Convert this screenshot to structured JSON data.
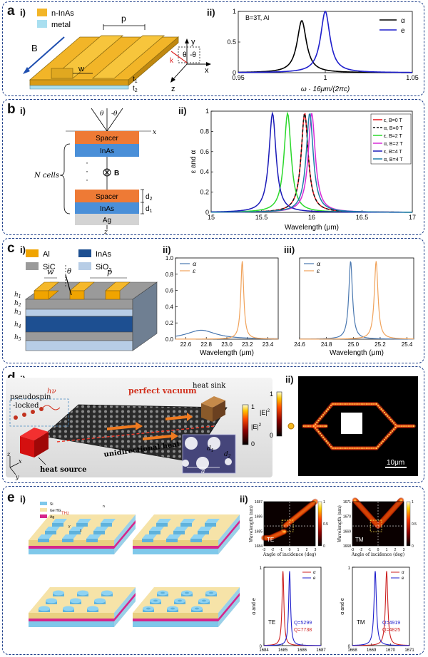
{
  "panels": {
    "a": {
      "label": "a",
      "sub_i": "i)",
      "sub_ii": "ii)",
      "legend": {
        "material": "n-InAs",
        "metal": "metal"
      },
      "labels": {
        "p": "p",
        "w": "w",
        "t1": "t",
        "t1sub": "1",
        "t2": "t",
        "t2sub": "2",
        "B": "B",
        "x": "x",
        "y": "y",
        "z": "z",
        "theta1": "θ",
        "theta2": "-θ",
        "k": "k"
      },
      "colors": {
        "material": "#f2b528",
        "metal": "#a9dff0"
      }
    },
    "b": {
      "label": "b",
      "sub_i": "i)",
      "sub_ii": "ii)",
      "layers": {
        "spacer": "Spacer",
        "inas": "InAs",
        "ag": "Ag"
      },
      "labels": {
        "ncells": "N cells",
        "B": "B",
        "d1": "d",
        "d1sub": "1",
        "d2": "d",
        "d2sub": "2",
        "theta": "θ",
        "mtheta": "-θ",
        "x": "x",
        "z": "z",
        "dots": "·"
      }
    },
    "c": {
      "label": "c",
      "sub_i": "i)",
      "sub_ii": "ii)",
      "sub_iii": "iii)",
      "legend": [
        {
          "name": "Al",
          "color": "#f0a400"
        },
        {
          "name": "InAs",
          "color": "#1d4f91"
        },
        {
          "name": "SiC",
          "color": "#9a9a9a"
        },
        {
          "name": "SiO",
          "sub": "2",
          "color": "#b7cde6"
        }
      ],
      "labels": {
        "w": "w",
        "p": "p",
        "theta": "θ",
        "h1": "h",
        "h2": "h",
        "h3": "h",
        "h4": "h",
        "h5": "h",
        "s1": "1",
        "s2": "2",
        "s3": "3",
        "s4": "4",
        "s5": "5"
      }
    },
    "d": {
      "label": "d",
      "sub_i": "i)",
      "sub_ii": "ii)",
      "texts": {
        "vacuum": "perfect vacuum",
        "pseudospin1": "pseudospin",
        "pseudospin2": "-locked",
        "hv": "hν",
        "heat_sink": "heat sink",
        "heat_source": "heat source",
        "flow": "unidirectional heat flow",
        "colorbar": "|E|",
        "colorbar_sup": "2",
        "cb_max": "1",
        "cb_min": "0",
        "d1": "d",
        "d1sub": "1",
        "d2": "d",
        "d2sub": "2",
        "a": "a",
        "x": "x",
        "y": "y",
        "z": "z"
      },
      "fieldmap": {
        "colorbar": "|E|",
        "colorbar_sup": "2",
        "cb_max": "1",
        "cb_min": "0",
        "scalebar": "10μm"
      }
    },
    "e": {
      "label": "e",
      "sub_i": "i)",
      "sub_ii": "ii)",
      "legend": [
        {
          "name": "Si",
          "color": "#7fc8ea"
        },
        {
          "name": "Ge HG",
          "color": "#f6e3a8"
        },
        {
          "name": "Ag",
          "color": "#d6268b"
        }
      ],
      "texts": {
        "thz": "THz",
        "n1": "n",
        "ny": "y",
        "nx": "x"
      }
    }
  },
  "chart_data": [
    {
      "id": "a_ii",
      "type": "line",
      "title": "B=3T, Al",
      "xlabel": "ω · 16μm/(2πc)",
      "ylabel": "",
      "xlim": [
        0.95,
        1.05
      ],
      "ylim": [
        0,
        1
      ],
      "xticks": [
        "0.95",
        "1",
        "1.05"
      ],
      "yticks": [
        "0",
        "0.5",
        "1"
      ],
      "series": [
        {
          "name": "α",
          "color": "#000000",
          "peak": 0.9865,
          "width": 0.0065,
          "height": 0.85
        },
        {
          "name": "e",
          "color": "#1f1fcc",
          "peak": 1.0,
          "width": 0.0065,
          "height": 1.0
        }
      ]
    },
    {
      "id": "b_ii",
      "type": "line",
      "title": "",
      "xlabel": "Wavelength (μm)",
      "ylabel": "ε and α",
      "xlim": [
        15,
        17
      ],
      "ylim": [
        0,
        1
      ],
      "xticks": [
        "15",
        "15.5",
        "16",
        "16.5",
        "17"
      ],
      "yticks": [
        "0",
        "0.2",
        "0.4",
        "0.6",
        "0.8",
        "1"
      ],
      "series": [
        {
          "name": "ε, B=0 T",
          "color": "#e8141b",
          "peak": 15.93,
          "width": 0.085,
          "height": 0.98
        },
        {
          "name": "α, B=0 T",
          "color": "#111111",
          "peak": 15.93,
          "width": 0.085,
          "height": 0.98,
          "dashed": true
        },
        {
          "name": "ε, B=2 T",
          "color": "#2bd82b",
          "peak": 15.76,
          "width": 0.085,
          "height": 0.98
        },
        {
          "name": "α, B=2 T",
          "color": "#d72bd7",
          "peak": 16.0,
          "width": 0.085,
          "height": 0.98
        },
        {
          "name": "ε, B=4 T",
          "color": "#1a1ab8",
          "peak": 15.61,
          "width": 0.085,
          "height": 0.98
        },
        {
          "name": "α, B=4 T",
          "color": "#1c7fa8",
          "peak": 15.98,
          "width": 0.085,
          "height": 0.98
        }
      ]
    },
    {
      "id": "c_ii",
      "type": "line",
      "xlabel": "Wavelength (μm)",
      "ylabel": "",
      "xlim": [
        22.5,
        23.5
      ],
      "ylim": [
        0,
        1
      ],
      "xticks": [
        "22.6",
        "22.8",
        "23.0",
        "23.2",
        "23.4"
      ],
      "yticks": [
        "0.0",
        "0.2",
        "0.4",
        "0.6",
        "0.8",
        "1.0"
      ],
      "series": [
        {
          "name": "α",
          "color": "#4a78b0",
          "peak": 22.75,
          "width": 0.35,
          "height": 0.11
        },
        {
          "name": "ε",
          "color": "#f0a25a",
          "peak": 23.15,
          "width": 0.035,
          "height": 0.96
        }
      ]
    },
    {
      "id": "c_iii",
      "type": "line",
      "xlabel": "Wavelength (μm)",
      "ylabel": "",
      "xlim": [
        24.6,
        25.45
      ],
      "ylim": [
        0,
        1
      ],
      "xticks": [
        "24.6",
        "24.8",
        "25.0",
        "25.2",
        "25.4"
      ],
      "yticks": [],
      "series": [
        {
          "name": "α",
          "color": "#4a78b0",
          "peak": 24.98,
          "width": 0.033,
          "height": 0.96
        },
        {
          "name": "ε",
          "color": "#f0a25a",
          "peak": 25.17,
          "width": 0.033,
          "height": 0.96
        }
      ]
    },
    {
      "id": "e_te_map",
      "type": "heatmap",
      "label": "TE",
      "xlabel": "Angle of incidence (deg)",
      "ylabel": "Wavelength (nm)",
      "xticks": [
        "-3",
        "-2",
        "-1",
        "0",
        "1",
        "2",
        "3"
      ],
      "yticks": [
        "1684",
        "1685",
        "1686",
        "1687"
      ],
      "cbticks": [
        "0",
        "0.5",
        "1"
      ]
    },
    {
      "id": "e_tm_map",
      "type": "heatmap",
      "label": "TM",
      "xlabel": "Angle of incidence (deg)",
      "ylabel": "Wavelength (nm)",
      "xticks": [
        "-3",
        "-2",
        "-1",
        "0",
        "1",
        "2",
        "3"
      ],
      "yticks": [
        "1668",
        "1669",
        "1670",
        "1671"
      ],
      "cbticks": [
        "0",
        "0.5",
        "1"
      ]
    },
    {
      "id": "e_te",
      "type": "line",
      "label": "TE",
      "ylabel": "α and e",
      "xlim": [
        1684,
        1687
      ],
      "ylim": [
        0,
        1
      ],
      "xticks": [
        "1684",
        "1685",
        "1686",
        "1687"
      ],
      "yticks": [
        "0",
        "1"
      ],
      "annotations": [
        {
          "text": "Q=5299",
          "color": "#1f1fcc"
        },
        {
          "text": "Q=7738",
          "color": "#cc1f1f"
        }
      ],
      "series": [
        {
          "name": "α",
          "color": "#cc1f1f",
          "peak": 1685.0,
          "width": 0.12,
          "height": 0.95
        },
        {
          "name": "e",
          "color": "#1f1fcc",
          "peak": 1685.35,
          "width": 0.12,
          "height": 0.95
        }
      ]
    },
    {
      "id": "e_tm",
      "type": "line",
      "label": "TM",
      "ylabel": "α and e",
      "xlim": [
        1668,
        1671
      ],
      "ylim": [
        0,
        1
      ],
      "xticks": [
        "1668",
        "1669",
        "1670",
        "1671"
      ],
      "yticks": [
        "0",
        "1"
      ],
      "annotations": [
        {
          "text": "Q=4919",
          "color": "#1f1fcc"
        },
        {
          "text": "Q=4825",
          "color": "#cc1f1f"
        }
      ],
      "series": [
        {
          "name": "α",
          "color": "#cc1f1f",
          "peak": 1669.8,
          "width": 0.15,
          "height": 0.95
        },
        {
          "name": "e",
          "color": "#1f1fcc",
          "peak": 1669.2,
          "width": 0.15,
          "height": 0.95
        }
      ]
    }
  ]
}
